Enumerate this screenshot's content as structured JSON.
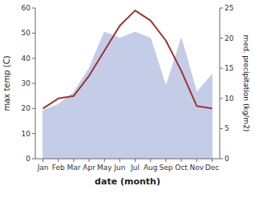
{
  "chart_data": {
    "type": "line",
    "xlabel": "date (month)",
    "ylabel": "max temp (C)",
    "y2label": "med. precipitation (kg/m2)",
    "categories": [
      "Jan",
      "Feb",
      "Mar",
      "Apr",
      "May",
      "Jun",
      "Jul",
      "Aug",
      "Sep",
      "Oct",
      "Nov",
      "Dec"
    ],
    "series": [
      {
        "type": "area",
        "axis": "y2",
        "color": "#c5cce8",
        "values": [
          8,
          9,
          11,
          15,
          21,
          20,
          21,
          20,
          12,
          20,
          11,
          14
        ]
      },
      {
        "type": "line",
        "color": "#993333",
        "values": [
          20,
          24,
          25,
          33,
          43,
          53,
          59,
          55,
          47,
          35,
          21,
          20
        ]
      }
    ],
    "ylim": [
      0,
      60
    ],
    "yticks": [
      0,
      10,
      20,
      30,
      40,
      50,
      60
    ],
    "y2lim": [
      0,
      25
    ],
    "y2ticks": [
      0,
      5,
      10,
      15,
      20,
      25
    ],
    "grid": false
  }
}
